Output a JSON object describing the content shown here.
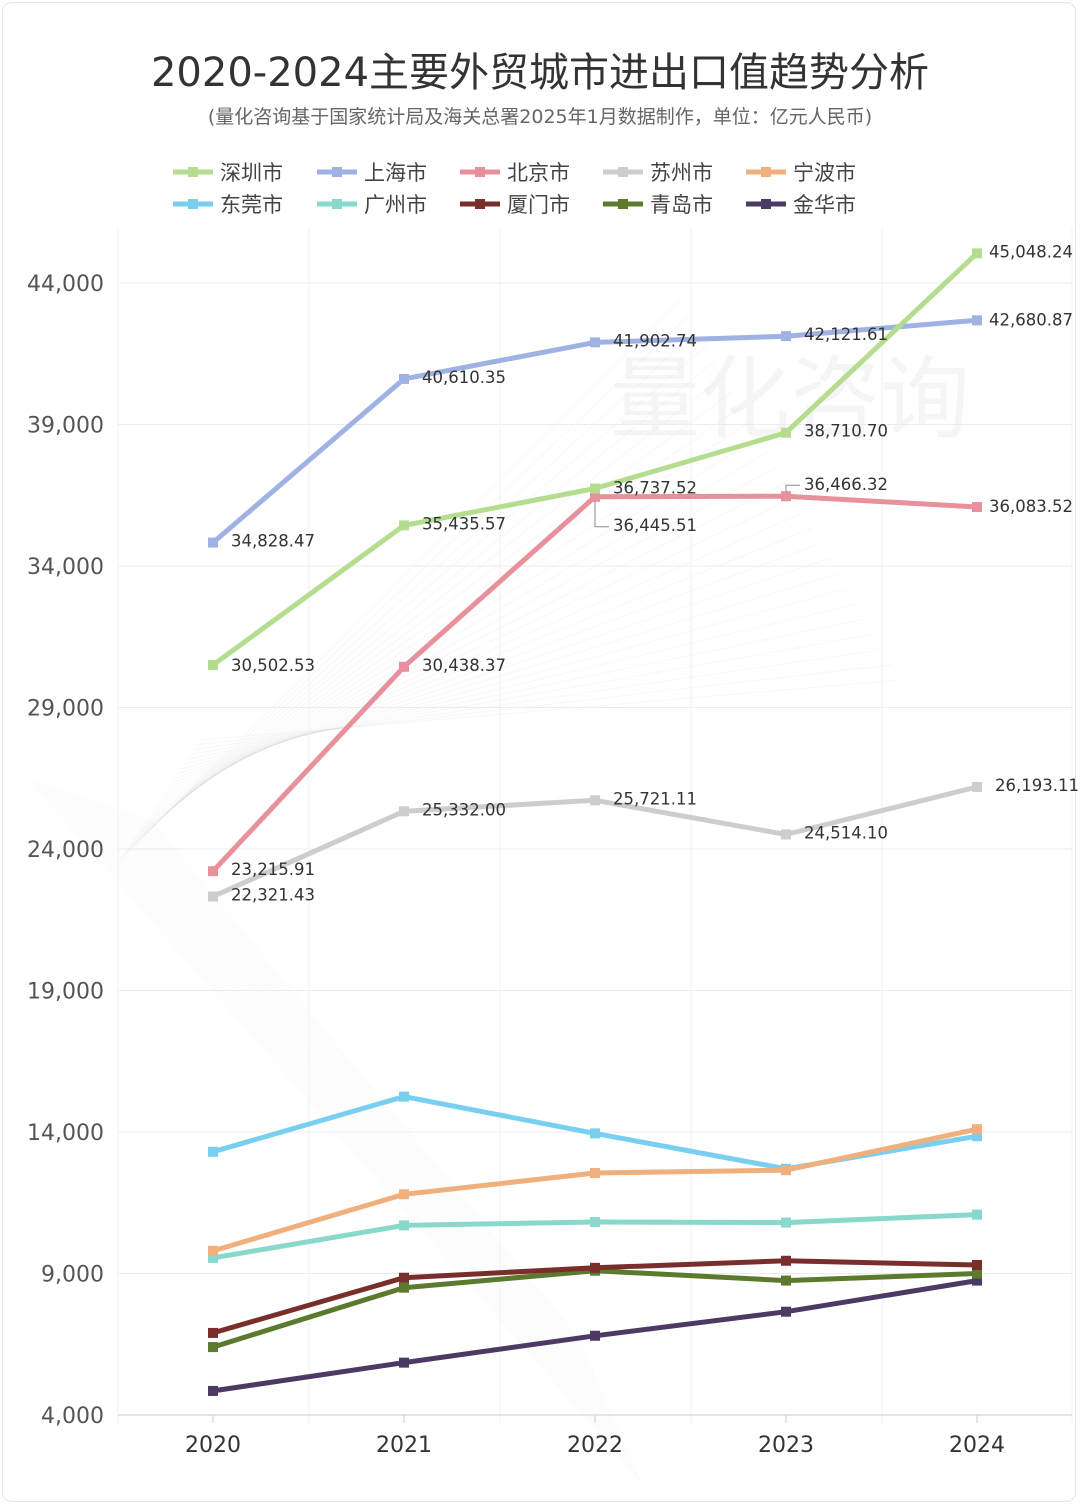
{
  "chart_data": {
    "type": "line",
    "title": "2020-2024主要外贸城市进出口值趋势分析",
    "subtitle": "(量化咨询基于国家统计局及海关总署2025年1月数据制作，单位：亿元人民币)",
    "watermark": "量化咨询",
    "categories": [
      "2020",
      "2021",
      "2022",
      "2023",
      "2024"
    ],
    "ylim": [
      4000,
      46000
    ],
    "yticks": [
      4000,
      9000,
      14000,
      19000,
      24000,
      29000,
      34000,
      39000,
      44000
    ],
    "ytick_labels": [
      "4,000",
      "9,000",
      "14,000",
      "19,000",
      "24,000",
      "29,000",
      "34,000",
      "39,000",
      "44,000"
    ],
    "grid": true,
    "legend_position": "top",
    "series": [
      {
        "name": "深圳市",
        "color": "#b5dd8f",
        "values": [
          30502.53,
          35435.57,
          36737.52,
          38710.7,
          45048.24
        ],
        "labels": [
          "30,502.53",
          "35,435.57",
          "36,737.52",
          "38,710.70",
          "45,048.24"
        ]
      },
      {
        "name": "上海市",
        "color": "#9eb3e3",
        "values": [
          34828.47,
          40610.35,
          41902.74,
          42121.61,
          42680.87
        ],
        "labels": [
          "34,828.47",
          "40,610.35",
          "41,902.74",
          "42,121.61",
          "42,680.87"
        ]
      },
      {
        "name": "北京市",
        "color": "#e8909c",
        "values": [
          23215.91,
          30438.37,
          36445.51,
          36466.32,
          36083.52
        ],
        "labels": [
          "23,215.91",
          "30,438.37",
          "36,445.51",
          "36,466.32",
          "36,083.52"
        ]
      },
      {
        "name": "苏州市",
        "color": "#cdcdcd",
        "values": [
          22321.43,
          25332.0,
          25721.11,
          24514.1,
          26193.11
        ],
        "labels": [
          "22,321.43",
          "25,332.00",
          "25,721.11",
          "24,514.10",
          "26,193.11"
        ]
      },
      {
        "name": "宁波市",
        "color": "#f0b07e",
        "values": [
          9800,
          11800,
          12550,
          12650,
          14100
        ],
        "labels": [
          "",
          "",
          "",
          "",
          ""
        ]
      },
      {
        "name": "东莞市",
        "color": "#79cff0",
        "values": [
          13300,
          15250,
          13950,
          12700,
          13850
        ],
        "labels": [
          "",
          "",
          "",
          "",
          ""
        ]
      },
      {
        "name": "广州市",
        "color": "#88d8cc",
        "values": [
          9550,
          10700,
          10820,
          10800,
          11080
        ],
        "labels": [
          "",
          "",
          "",
          "",
          ""
        ]
      },
      {
        "name": "厦门市",
        "color": "#7a2e2c",
        "values": [
          6900,
          8850,
          9200,
          9450,
          9300
        ],
        "labels": [
          "",
          "",
          "",
          "",
          ""
        ]
      },
      {
        "name": "青岛市",
        "color": "#5c7a2e",
        "values": [
          6400,
          8500,
          9100,
          8750,
          9000
        ],
        "labels": [
          "",
          "",
          "",
          "",
          ""
        ]
      },
      {
        "name": "金华市",
        "color": "#4c3a65",
        "values": [
          4850,
          5850,
          6800,
          7650,
          8750
        ],
        "labels": [
          "",
          "",
          "",
          "",
          ""
        ]
      }
    ]
  }
}
